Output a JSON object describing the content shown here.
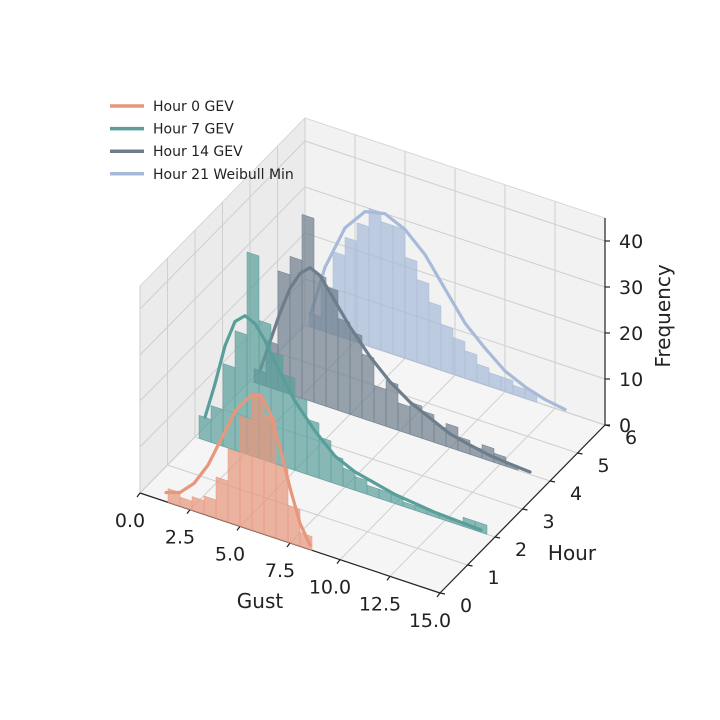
{
  "chart_data": {
    "type": "bar",
    "projection": "3d",
    "xlabel": "Gust",
    "ylabel": "Hour",
    "zlabel": "Frequency",
    "xlim": [
      0,
      15
    ],
    "ylim": [
      0,
      6
    ],
    "zlim": [
      0,
      45
    ],
    "x_ticks": [
      "0.0",
      "2.5",
      "5.0",
      "7.5",
      "10.0",
      "12.5",
      "15.0"
    ],
    "y_ticks": [
      "0",
      "1",
      "2",
      "3",
      "4",
      "5",
      "6"
    ],
    "z_ticks": [
      "0",
      "10",
      "20",
      "30",
      "40"
    ],
    "grid": true,
    "legend_position": "upper-left",
    "series": [
      {
        "name": "Hour 0 GEV",
        "hour": 0,
        "color": "#e8967c",
        "bins_center": [
          1.7,
          2.3,
          2.9,
          3.5,
          4.1,
          4.7,
          5.3,
          5.9,
          6.5,
          7.1,
          7.7,
          8.3
        ],
        "counts": [
          3,
          2,
          3,
          4,
          9,
          16,
          24,
          30,
          26,
          16,
          8,
          3
        ],
        "fit_x": [
          1.3,
          2.0,
          2.7,
          3.4,
          4.1,
          4.8,
          5.5,
          6.0,
          6.5,
          7.0,
          7.5,
          8.0,
          8.5
        ],
        "fit_y": [
          2,
          3,
          6,
          11,
          18,
          25,
          29,
          30,
          27,
          20,
          12,
          5,
          1
        ]
      },
      {
        "name": "Hour 7 GEV",
        "hour": 2,
        "color": "#5a9e9a",
        "bins_center": [
          0.5,
          1.1,
          1.7,
          2.3,
          2.9,
          3.5,
          4.1,
          4.7,
          5.3,
          5.9,
          6.5,
          7.1,
          7.7,
          8.3,
          8.9,
          9.5,
          10.1,
          10.7,
          11.3,
          11.9,
          12.5,
          13.1,
          13.7,
          14.3
        ],
        "counts": [
          5,
          8,
          18,
          26,
          44,
          30,
          24,
          20,
          16,
          12,
          9,
          6,
          4,
          3,
          2,
          2,
          2,
          1,
          1,
          1,
          1,
          1,
          2,
          2
        ],
        "fit_x": [
          0.5,
          1.0,
          1.5,
          2.0,
          2.5,
          3.0,
          3.5,
          4.0,
          5.0,
          6.0,
          7.0,
          8.0,
          9.0,
          10.0,
          11.0,
          12.0,
          13.0,
          14.3
        ],
        "fit_y": [
          5,
          13,
          22,
          28,
          30,
          29,
          26,
          22,
          15,
          10,
          6,
          4,
          3,
          2,
          1.5,
          1,
          0.8,
          0.5
        ]
      },
      {
        "name": "Hour 14 GEV",
        "hour": 4,
        "color": "#6e7d8c",
        "bins_center": [
          0.5,
          1.1,
          1.7,
          2.3,
          2.9,
          3.5,
          4.1,
          4.7,
          5.3,
          5.9,
          6.5,
          7.1,
          7.7,
          8.3,
          8.9,
          9.5,
          10.1,
          10.7,
          11.3,
          11.9,
          12.5,
          13.1
        ],
        "counts": [
          3,
          10,
          26,
          30,
          40,
          28,
          26,
          20,
          18,
          14,
          8,
          10,
          6,
          7,
          6,
          4,
          5,
          3,
          2,
          3,
          2,
          1
        ],
        "fit_x": [
          0.5,
          1.0,
          1.5,
          2.0,
          2.5,
          3.0,
          3.5,
          4.0,
          5.0,
          6.0,
          7.0,
          8.0,
          9.0,
          10.0,
          11.0,
          12.0,
          13.0,
          14.0
        ],
        "fit_y": [
          3,
          10,
          17,
          23,
          27,
          29,
          28,
          25,
          19,
          14,
          10,
          7,
          5,
          3,
          2,
          1.2,
          0.8,
          0.5
        ]
      },
      {
        "name": "Hour 21 Weibull Min",
        "hour": 6,
        "color": "#a7bbd9",
        "bins_center": [
          0.5,
          1.1,
          1.7,
          2.3,
          2.9,
          3.5,
          4.1,
          4.7,
          5.3,
          5.9,
          6.5,
          7.1,
          7.7,
          8.3,
          8.9,
          9.5,
          10.1,
          10.7,
          11.3
        ],
        "counts": [
          3,
          10,
          18,
          22,
          26,
          30,
          28,
          28,
          22,
          18,
          14,
          10,
          8,
          6,
          4,
          3,
          3,
          2,
          2
        ],
        "fit_x": [
          0.3,
          1.0,
          2.0,
          3.0,
          4.0,
          5.0,
          6.0,
          7.0,
          8.0,
          9.0,
          10.0,
          11.0,
          12.0,
          13.0
        ],
        "fit_y": [
          3,
          14,
          24,
          29,
          30,
          28,
          24,
          18,
          12,
          8,
          4.5,
          2.5,
          1.2,
          0.5
        ]
      }
    ]
  }
}
